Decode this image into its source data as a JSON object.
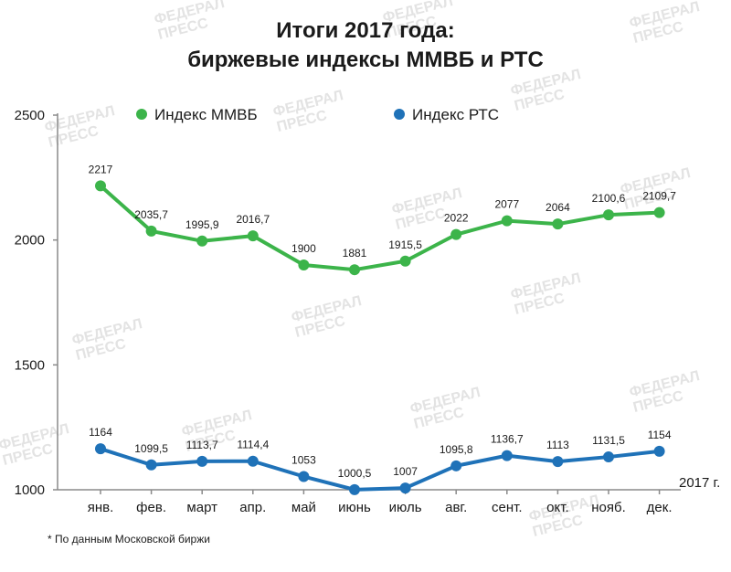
{
  "title_line1": "Итоги 2017 года:",
  "title_line2": "биржевые индексы ММВБ и РТС",
  "footnote": "* По данным Московской биржи",
  "watermark": {
    "line1": "ФЕДЕРАЛ",
    "line2": "ПРЕСС"
  },
  "colors": {
    "mmvb": "#3cb44a",
    "rts": "#1f72b8",
    "axis": "#8a8a8a"
  },
  "chart_data": {
    "type": "line",
    "categories": [
      "янв.",
      "фев.",
      "март",
      "апр.",
      "май",
      "июнь",
      "июль",
      "авг.",
      "сент.",
      "окт.",
      "нояб.",
      "дек."
    ],
    "x_unit_label": "2017 г.",
    "y_ticks": [
      1000,
      1500,
      2000,
      2500
    ],
    "ylim": [
      1000,
      2500
    ],
    "grid": false,
    "legend_position": "top",
    "series": [
      {
        "name": "Индекс ММВБ",
        "color": "#3cb44a",
        "values": [
          2217,
          2035.7,
          1995.9,
          2016.7,
          1900,
          1881,
          1915.5,
          2022,
          2077,
          2064,
          2100.6,
          2109.7
        ],
        "labels": [
          "2217",
          "2035,7",
          "1995,9",
          "2016,7",
          "1900",
          "1881",
          "1915,5",
          "2022",
          "2077",
          "2064",
          "2100,6",
          "2109,7"
        ]
      },
      {
        "name": "Индекс РТС",
        "color": "#1f72b8",
        "values": [
          1164,
          1099.5,
          1113.7,
          1114.4,
          1053,
          1000.5,
          1007,
          1095.8,
          1136.7,
          1113,
          1131.5,
          1154
        ],
        "labels": [
          "1164",
          "1099,5",
          "1113,7",
          "1114,4",
          "1053",
          "1000,5",
          "1007",
          "1095,8",
          "1136,7",
          "1113",
          "1131,5",
          "1154"
        ]
      }
    ]
  }
}
